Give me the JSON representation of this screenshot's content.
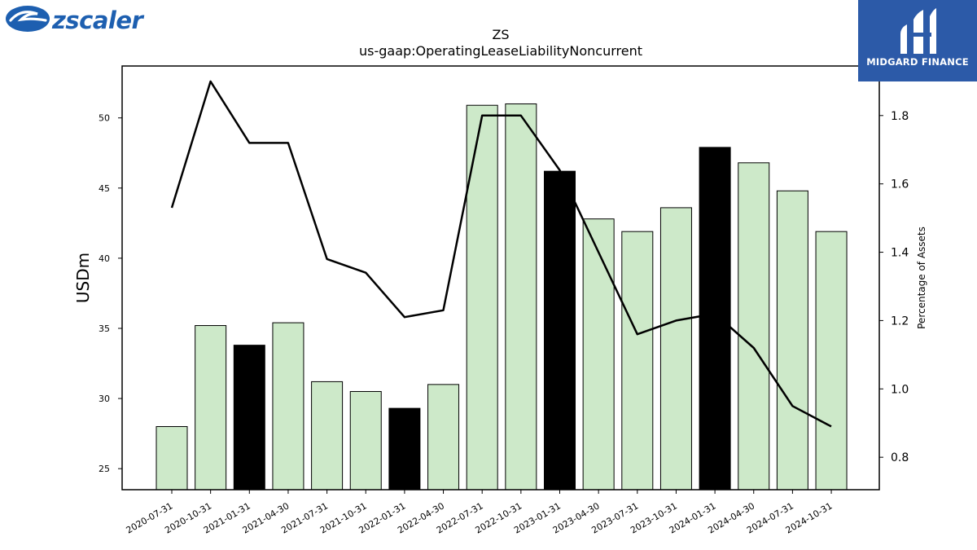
{
  "brand": {
    "logo_text": "zscaler",
    "badge_text": "MIDGARD FINANCE"
  },
  "chart_data": {
    "type": "bar",
    "title": "ZS",
    "subtitle": "us-gaap:OperatingLeaseLiabilityNoncurrent",
    "ylabel": "USDm",
    "y2label": "Percentage of Assets",
    "categories": [
      "2020-07-31",
      "2020-10-31",
      "2021-01-31",
      "2021-04-30",
      "2021-07-31",
      "2021-10-31",
      "2022-01-31",
      "2022-04-30",
      "2022-07-31",
      "2022-10-31",
      "2023-01-31",
      "2023-04-30",
      "2023-07-31",
      "2023-10-31",
      "2024-01-31",
      "2024-04-30",
      "2024-07-31",
      "2024-10-31"
    ],
    "series": [
      {
        "type": "bar",
        "values": [
          28.0,
          35.2,
          33.8,
          35.4,
          31.2,
          30.5,
          29.3,
          31.0,
          50.9,
          51.0,
          46.2,
          42.8,
          41.9,
          43.6,
          47.9,
          46.8,
          44.8,
          41.9
        ],
        "highlight": [
          false,
          false,
          true,
          false,
          false,
          false,
          true,
          false,
          false,
          false,
          true,
          false,
          false,
          false,
          true,
          false,
          false,
          false
        ]
      },
      {
        "type": "line",
        "axis": "right",
        "values": [
          1.53,
          1.9,
          1.72,
          1.72,
          1.38,
          1.34,
          1.21,
          1.23,
          1.8,
          1.8,
          1.64,
          1.4,
          1.16,
          1.2,
          1.22,
          1.12,
          0.95,
          0.89
        ]
      }
    ],
    "ylim": [
      23.5,
      53.7
    ],
    "y2lim": [
      0.705,
      1.945
    ],
    "yticks": [
      25,
      30,
      35,
      40,
      45,
      50
    ],
    "y2ticks": [
      0.8,
      1.0,
      1.2,
      1.4,
      1.6,
      1.8
    ],
    "colors": {
      "bar": "#cde9c9",
      "bar_highlight": "#000000",
      "line": "#000000"
    },
    "grid": false,
    "legend": "none"
  }
}
